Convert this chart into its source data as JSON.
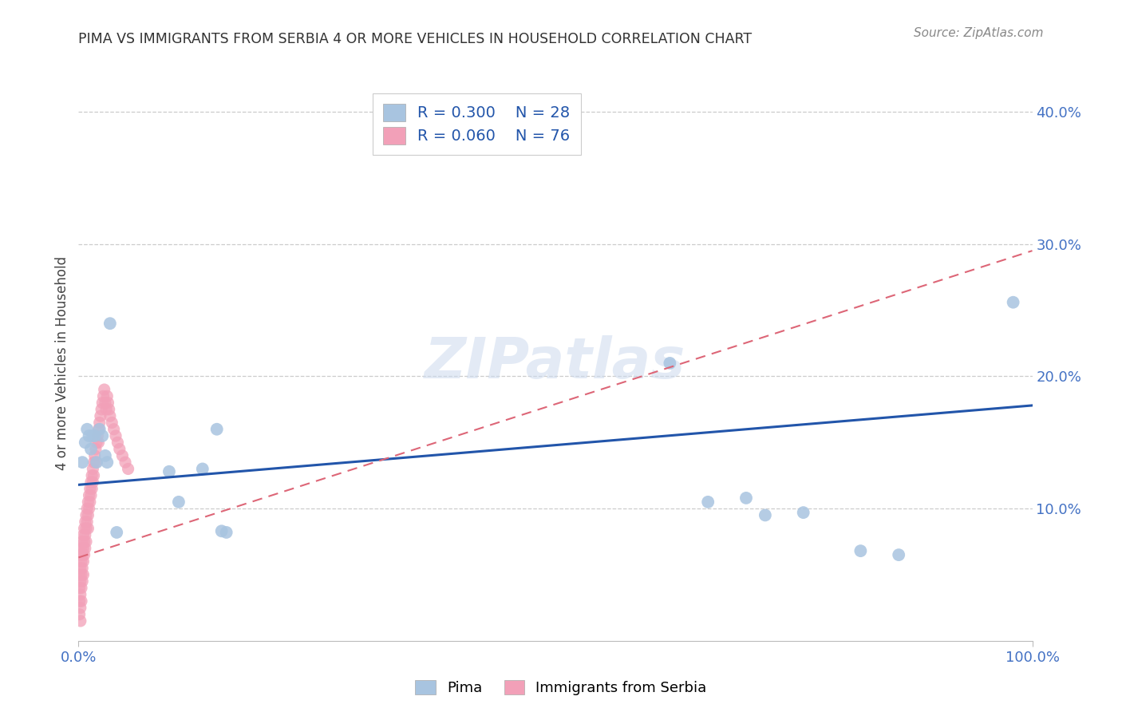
{
  "title": "PIMA VS IMMIGRANTS FROM SERBIA 4 OR MORE VEHICLES IN HOUSEHOLD CORRELATION CHART",
  "source": "Source: ZipAtlas.com",
  "tick_color": "#4472c4",
  "ylabel": "4 or more Vehicles in Household",
  "xlim": [
    0,
    1.0
  ],
  "ylim": [
    0,
    0.42
  ],
  "xtick_positions": [
    0.0,
    1.0
  ],
  "xtick_labels": [
    "0.0%",
    "100.0%"
  ],
  "ytick_positions": [
    0.1,
    0.2,
    0.3,
    0.4
  ],
  "ytick_labels": [
    "10.0%",
    "20.0%",
    "30.0%",
    "40.0%"
  ],
  "background_color": "#ffffff",
  "grid_color": "#cccccc",
  "pima_R": 0.3,
  "pima_N": 28,
  "serbia_R": 0.06,
  "serbia_N": 76,
  "pima_color": "#a8c4e0",
  "serbia_color": "#f2a0b8",
  "pima_line_color": "#2255aa",
  "serbia_line_color": "#dd6677",
  "pima_scatter_x": [
    0.004,
    0.007,
    0.009,
    0.011,
    0.013,
    0.015,
    0.017,
    0.019,
    0.022,
    0.025,
    0.028,
    0.03,
    0.033,
    0.04,
    0.095,
    0.105,
    0.13,
    0.145,
    0.15,
    0.155,
    0.62,
    0.66,
    0.7,
    0.72,
    0.76,
    0.82,
    0.86,
    0.98
  ],
  "pima_scatter_y": [
    0.135,
    0.15,
    0.16,
    0.155,
    0.145,
    0.155,
    0.155,
    0.135,
    0.16,
    0.155,
    0.14,
    0.135,
    0.24,
    0.082,
    0.128,
    0.105,
    0.13,
    0.16,
    0.083,
    0.082,
    0.21,
    0.105,
    0.108,
    0.095,
    0.097,
    0.068,
    0.065,
    0.256
  ],
  "serbia_scatter_x": [
    0.001,
    0.001,
    0.001,
    0.001,
    0.002,
    0.002,
    0.002,
    0.002,
    0.002,
    0.002,
    0.003,
    0.003,
    0.003,
    0.003,
    0.003,
    0.004,
    0.004,
    0.004,
    0.004,
    0.005,
    0.005,
    0.005,
    0.005,
    0.006,
    0.006,
    0.006,
    0.007,
    0.007,
    0.007,
    0.008,
    0.008,
    0.008,
    0.009,
    0.009,
    0.01,
    0.01,
    0.01,
    0.011,
    0.011,
    0.012,
    0.012,
    0.013,
    0.013,
    0.014,
    0.014,
    0.015,
    0.015,
    0.016,
    0.016,
    0.017,
    0.018,
    0.018,
    0.019,
    0.02,
    0.021,
    0.021,
    0.022,
    0.023,
    0.024,
    0.025,
    0.026,
    0.027,
    0.028,
    0.029,
    0.03,
    0.031,
    0.032,
    0.033,
    0.035,
    0.037,
    0.039,
    0.041,
    0.043,
    0.046,
    0.049,
    0.052
  ],
  "serbia_scatter_y": [
    0.05,
    0.04,
    0.03,
    0.02,
    0.065,
    0.055,
    0.045,
    0.035,
    0.025,
    0.015,
    0.07,
    0.06,
    0.05,
    0.04,
    0.03,
    0.075,
    0.065,
    0.055,
    0.045,
    0.08,
    0.07,
    0.06,
    0.05,
    0.085,
    0.075,
    0.065,
    0.09,
    0.08,
    0.07,
    0.095,
    0.085,
    0.075,
    0.1,
    0.09,
    0.105,
    0.095,
    0.085,
    0.11,
    0.1,
    0.115,
    0.105,
    0.12,
    0.11,
    0.125,
    0.115,
    0.13,
    0.12,
    0.135,
    0.125,
    0.14,
    0.145,
    0.135,
    0.15,
    0.155,
    0.16,
    0.15,
    0.165,
    0.17,
    0.175,
    0.18,
    0.185,
    0.19,
    0.18,
    0.175,
    0.185,
    0.18,
    0.175,
    0.17,
    0.165,
    0.16,
    0.155,
    0.15,
    0.145,
    0.14,
    0.135,
    0.13
  ],
  "pima_line_x": [
    0.0,
    1.0
  ],
  "pima_line_y": [
    0.118,
    0.178
  ],
  "serbia_line_x": [
    0.0,
    1.0
  ],
  "serbia_line_y": [
    0.063,
    0.295
  ],
  "watermark_text": "ZIPatlas",
  "legend_label1": "Pima",
  "legend_label2": "Immigrants from Serbia"
}
